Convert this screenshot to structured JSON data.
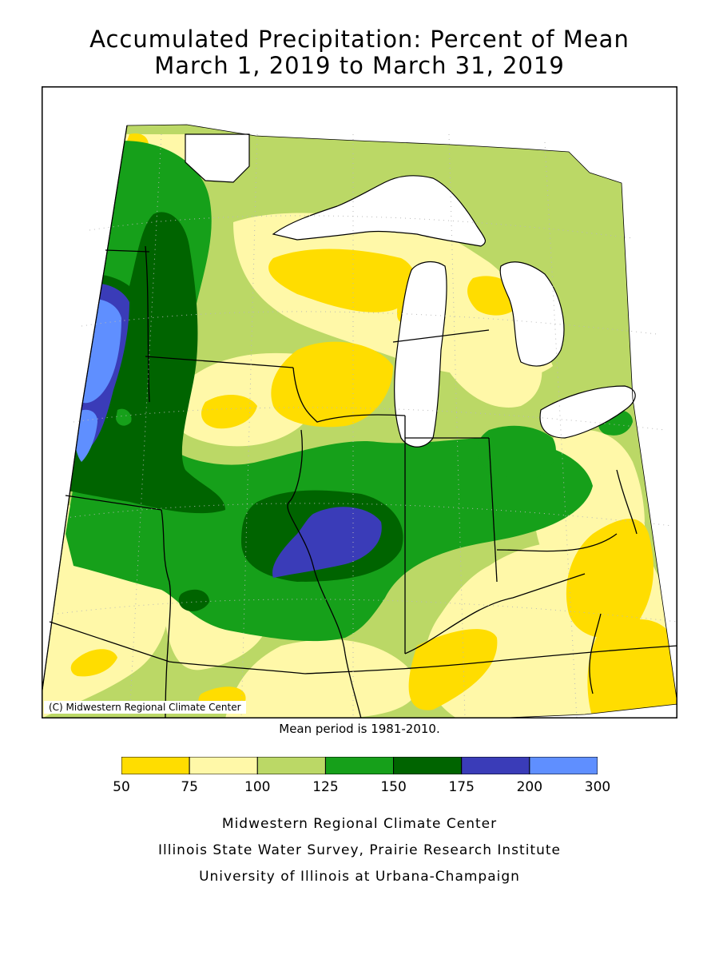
{
  "title": {
    "line1": "Accumulated Precipitation: Percent of Mean",
    "line2": "March 1, 2019 to March 31, 2019"
  },
  "copyright": "(C) Midwestern Regional Climate Center",
  "mean_period": "Mean period is 1981-2010.",
  "legend": {
    "ticks": [
      "50",
      "75",
      "100",
      "125",
      "150",
      "175",
      "200",
      "300"
    ],
    "colors": [
      "#ffdd00",
      "#fff8a8",
      "#bbd866",
      "#16a01a",
      "#006400",
      "#3a3cb8",
      "#5f8fff"
    ]
  },
  "credits": {
    "line1": "Midwestern Regional Climate Center",
    "line2": "Illinois State Water Survey, Prairie Research Institute",
    "line3": "University of Illinois at Urbana-Champaign"
  },
  "colors": {
    "lake": "#ffffff",
    "outline": "#000000",
    "grid": "#b8b8b8"
  }
}
